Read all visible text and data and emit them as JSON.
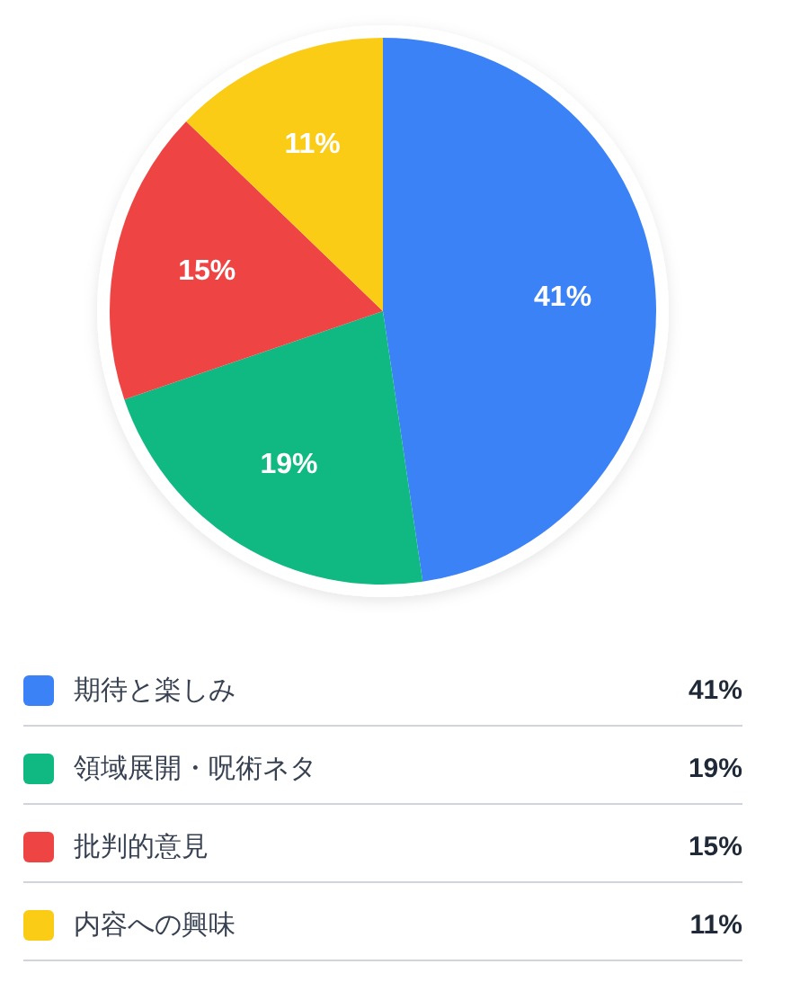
{
  "chart_data": {
    "type": "pie",
    "categories": [
      "期待と楽しみ",
      "領域展開・呪術ネタ",
      "批判的意見",
      "内容への興味"
    ],
    "values": [
      41,
      19,
      15,
      11
    ],
    "colors": [
      "#3b82f6",
      "#10b981",
      "#ef4444",
      "#facc15"
    ],
    "value_labels": [
      "41%",
      "19%",
      "15%",
      "11%"
    ],
    "legend": "bottom"
  }
}
